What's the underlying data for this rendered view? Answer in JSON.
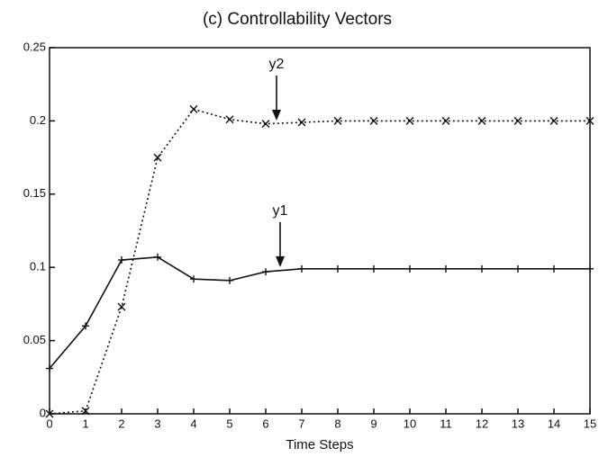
{
  "chart_data": {
    "type": "line",
    "title": "(c) Controllability Vectors",
    "xlabel": "Time Steps",
    "x": [
      0,
      1,
      2,
      3,
      4,
      5,
      6,
      7,
      8,
      9,
      10,
      11,
      12,
      13,
      14,
      15
    ],
    "series": [
      {
        "color": "#111111",
        "style": "solid",
        "marker": "plus",
        "values": [
          0.031,
          0.06,
          0.105,
          0.107,
          0.092,
          0.091,
          0.097,
          0.099,
          0.099,
          0.099,
          0.099,
          0.099,
          0.099,
          0.099,
          0.099,
          0.099
        ]
      },
      {
        "color": "#111111",
        "style": "dotted",
        "marker": "x",
        "values": [
          0,
          0.002,
          0.073,
          0.175,
          0.208,
          0.201,
          0.198,
          0.199,
          0.2,
          0.2,
          0.2,
          0.2,
          0.2,
          0.2,
          0.2,
          0.2
        ]
      }
    ],
    "annotations": [
      {
        "text": "y2",
        "x": 6.3,
        "y": 0.199
      },
      {
        "text": "y1",
        "x": 6.4,
        "y": 0.099
      }
    ],
    "xlim": [
      0,
      15
    ],
    "xticks": [
      0,
      1,
      2,
      3,
      4,
      5,
      6,
      7,
      8,
      9,
      10,
      11,
      12,
      13,
      14,
      15
    ],
    "ylim": [
      0,
      0.25
    ],
    "yticks": [
      0,
      0.05,
      0.1,
      0.15,
      0.2,
      0.25
    ],
    "grid": false
  }
}
